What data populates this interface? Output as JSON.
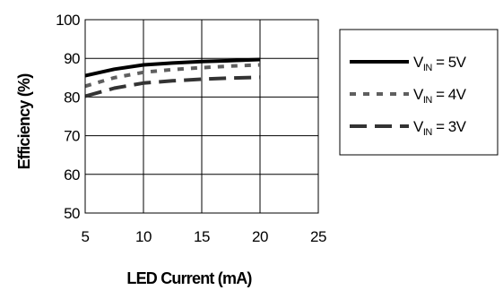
{
  "chart_data": {
    "type": "line",
    "xlabel": "LED Current (mA)",
    "ylabel": "Efficiency (%)",
    "xlim": [
      5,
      25
    ],
    "ylim": [
      50,
      100
    ],
    "xticks": [
      5,
      10,
      15,
      20,
      25
    ],
    "yticks": [
      50,
      60,
      70,
      80,
      90,
      100
    ],
    "grid": true,
    "legend_position": "right",
    "series": [
      {
        "name": "V_IN = 5V",
        "legend": {
          "main": "V",
          "sub": "IN",
          "rest": " = 5V"
        },
        "style": "solid",
        "color": "#000000",
        "x": [
          5,
          7.5,
          10,
          12.5,
          15,
          17.5,
          20
        ],
        "y": [
          85.5,
          87.2,
          88.3,
          88.8,
          89.2,
          89.4,
          89.7
        ]
      },
      {
        "name": "V_IN = 4V",
        "legend": {
          "main": "V",
          "sub": "IN",
          "rest": " = 4V"
        },
        "style": "dotted",
        "color": "#5f5f5f",
        "x": [
          5,
          7.5,
          10,
          12.5,
          15,
          17.5,
          20
        ],
        "y": [
          82.8,
          85.0,
          86.4,
          87.1,
          87.6,
          88.0,
          88.3
        ]
      },
      {
        "name": "V_IN = 3V",
        "legend": {
          "main": "V",
          "sub": "IN",
          "rest": " = 3V"
        },
        "style": "dashed",
        "color": "#333333",
        "x": [
          5,
          7.5,
          10,
          12.5,
          15,
          17.5,
          20
        ],
        "y": [
          80.2,
          82.3,
          83.6,
          84.2,
          84.6,
          84.9,
          85.1
        ]
      }
    ]
  }
}
